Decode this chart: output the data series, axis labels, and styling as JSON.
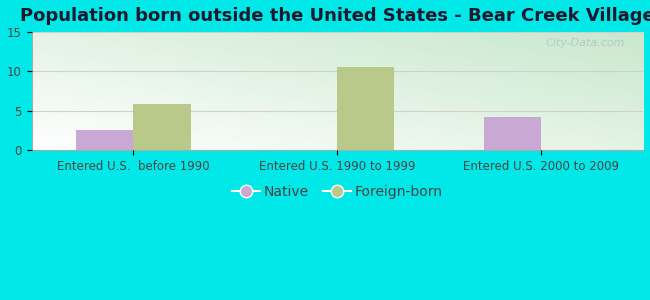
{
  "title": "Population born outside the United States - Bear Creek Village",
  "groups": [
    "Entered U.S.  before 1990",
    "Entered U.S. 1990 to 1999",
    "Entered U.S. 2000 to 2009"
  ],
  "native_values": [
    2.5,
    0,
    4.2
  ],
  "foreign_values": [
    5.8,
    10.5,
    0
  ],
  "native_color": "#c9a8d4",
  "foreign_color": "#b8c98a",
  "bar_width": 0.28,
  "ylim": [
    0,
    15
  ],
  "yticks": [
    0,
    5,
    10,
    15
  ],
  "outer_bg": "#00e8e8",
  "plot_bg_topleft": "#c8e8cc",
  "plot_bg_topright": "#ffffff",
  "plot_bg_bottomleft": "#c8e8cc",
  "legend_native": "Native",
  "legend_foreign": "Foreign-born",
  "title_fontsize": 13,
  "tick_fontsize": 8.5,
  "legend_fontsize": 10,
  "watermark": "City-Data.com",
  "grid_color": "#d0d0d0"
}
